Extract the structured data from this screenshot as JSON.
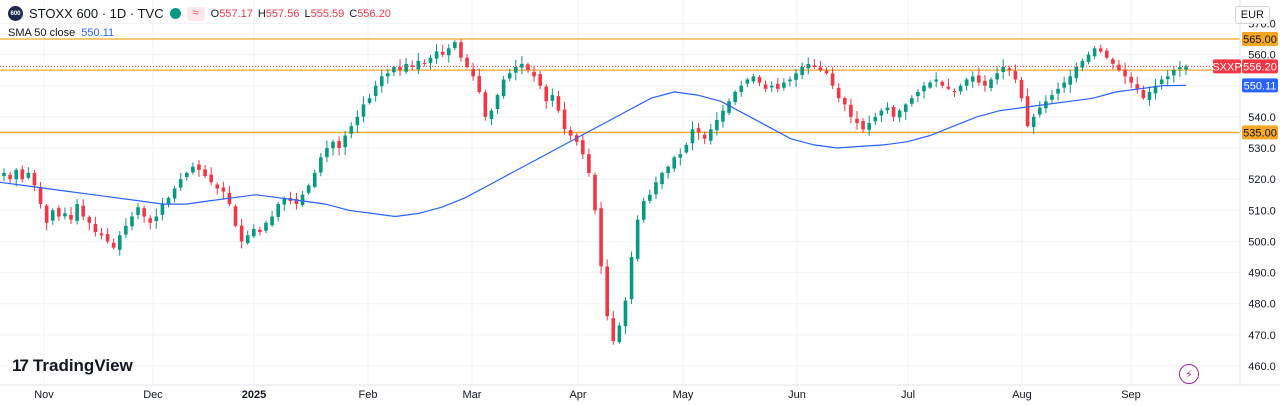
{
  "header": {
    "badge": "600",
    "symbol": "STOXX 600 · 1D · TVC",
    "wave_icon": "≈",
    "ohlc": [
      {
        "k": "O",
        "v": "557.17"
      },
      {
        "k": "H",
        "v": "557.56"
      },
      {
        "k": "L",
        "v": "555.59"
      },
      {
        "k": "C",
        "v": "556.20"
      }
    ]
  },
  "sma": {
    "label": "SMA 50 close",
    "value": "550.11"
  },
  "currency": "EUR",
  "logo_text": "TradingView",
  "logo_mark": "17",
  "colors": {
    "up": "#089981",
    "down": "#f23645",
    "sma": "#2962ff",
    "level": "#f5a623",
    "price": "#f23645"
  },
  "chart_data": {
    "type": "candlestick",
    "y_ticks": [
      460,
      470,
      480,
      490,
      500,
      510,
      520,
      530,
      540,
      550,
      560,
      570
    ],
    "ylim": [
      457.5,
      570.5
    ],
    "x_labels": [
      "Nov",
      "Dec",
      "2025",
      "Feb",
      "Mar",
      "Apr",
      "May",
      "Jun",
      "Jul",
      "Aug",
      "Sep"
    ],
    "horizontal_levels": [
      565,
      555,
      535
    ],
    "level_labels": [
      "565.00",
      "535.00"
    ],
    "current_price": {
      "label": "SXXP",
      "value": "556.20",
      "y": 556.2
    },
    "sma_last": {
      "value": "550.11",
      "y": 550.11
    },
    "ohlc_path": [
      522,
      520,
      523,
      520,
      522,
      518,
      512,
      506,
      510,
      508,
      509,
      507,
      512,
      508,
      506,
      503,
      502,
      500,
      498,
      502,
      505,
      508,
      511,
      508,
      506,
      508,
      512,
      514,
      517,
      520,
      522,
      524,
      523,
      521,
      519,
      517,
      516,
      512,
      505,
      500,
      502,
      504,
      503,
      506,
      508,
      512,
      514,
      513,
      512,
      515,
      518,
      522,
      527,
      530,
      532,
      530,
      534,
      537,
      540,
      544,
      546,
      550,
      553,
      554,
      556,
      555,
      557,
      556,
      558,
      557,
      559,
      561,
      560,
      562,
      564,
      559,
      556,
      553,
      548,
      540,
      542,
      547,
      552,
      554,
      556,
      557,
      555,
      553,
      550,
      545,
      547,
      542,
      536,
      534,
      532,
      528,
      522,
      510,
      492,
      476,
      468,
      473,
      481,
      495,
      507,
      513,
      515,
      519,
      522,
      524,
      527,
      528,
      531,
      536,
      535,
      533,
      536,
      539,
      542,
      545,
      548,
      550,
      552,
      553,
      551,
      549,
      550,
      549,
      551,
      552,
      554,
      556,
      557,
      556,
      555,
      554,
      550,
      546,
      544,
      540,
      538,
      536,
      538,
      540,
      542,
      543,
      540,
      542,
      544,
      546,
      548,
      550,
      551,
      552,
      550,
      549,
      548,
      550,
      552,
      553,
      551,
      550,
      552,
      554,
      556,
      555,
      552,
      546,
      537,
      540,
      543,
      545,
      547,
      549,
      551,
      553,
      556,
      558,
      560,
      562,
      561,
      559,
      557,
      555,
      553,
      551,
      549,
      546,
      548,
      550,
      552,
      553,
      555,
      556,
      556.2
    ],
    "sma_path": [
      519,
      518,
      517,
      516,
      515,
      514,
      513,
      512,
      512,
      513,
      514,
      515,
      514,
      513,
      512,
      510,
      509,
      508,
      509,
      511,
      514,
      518,
      522,
      526,
      530,
      534,
      538,
      542,
      546,
      548,
      547,
      545,
      541,
      537,
      533,
      531,
      530,
      530.5,
      531,
      532,
      534,
      537,
      540,
      542,
      543,
      544,
      545,
      546,
      548,
      549,
      550,
      550.11
    ]
  }
}
